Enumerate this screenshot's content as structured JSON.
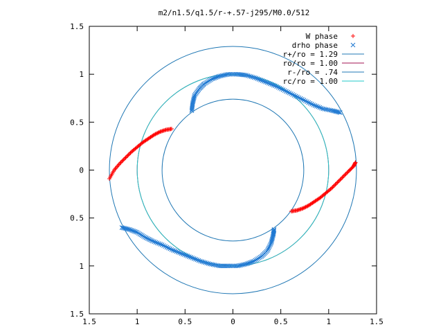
{
  "chart_data": {
    "type": "scatter",
    "title": "m2/n1.5/q1.5/r-+.57-j295/M0.0/512",
    "xlabel": "",
    "ylabel": "",
    "xlim": [
      -1.5,
      1.5
    ],
    "ylim": [
      -1.5,
      1.5
    ],
    "x_tick_values": [
      -1.5,
      -1,
      -0.5,
      0,
      0.5,
      1,
      1.5
    ],
    "x_tick_labels": [
      "1.5",
      "1",
      "0.5",
      "0",
      "0.5",
      "1",
      "1.5"
    ],
    "y_tick_values": [
      1.5,
      1,
      0.5,
      0,
      -0.5,
      -1,
      -1.5
    ],
    "y_tick_labels": [
      "1.5",
      "1",
      "0.5",
      "0",
      "0.5",
      "1",
      "1.5"
    ],
    "grid": false,
    "legend_position": "top-right",
    "aspect": "equal",
    "series": [
      {
        "name": "W phase",
        "marker": "plus",
        "color": "#ff0000",
        "segments": [
          [
            [
              -1.29,
              -0.09
            ],
            [
              -1.24,
              0.0
            ],
            [
              -1.18,
              0.07
            ],
            [
              -1.12,
              0.13
            ],
            [
              -1.06,
              0.19
            ],
            [
              -1.0,
              0.24
            ],
            [
              -0.94,
              0.29
            ],
            [
              -0.88,
              0.33
            ],
            [
              -0.82,
              0.37
            ],
            [
              -0.76,
              0.4
            ],
            [
              -0.7,
              0.42
            ],
            [
              -0.64,
              0.43
            ]
          ],
          [
            [
              0.61,
              -0.43
            ],
            [
              0.67,
              -0.42
            ],
            [
              0.73,
              -0.4
            ],
            [
              0.79,
              -0.37
            ],
            [
              0.85,
              -0.33
            ],
            [
              0.91,
              -0.29
            ],
            [
              0.97,
              -0.24
            ],
            [
              1.03,
              -0.19
            ],
            [
              1.09,
              -0.13
            ],
            [
              1.15,
              -0.07
            ],
            [
              1.21,
              -0.01
            ],
            [
              1.26,
              0.04
            ],
            [
              1.28,
              0.08
            ]
          ]
        ]
      },
      {
        "name": "drho phase",
        "marker": "cross",
        "color": "#1e78d2",
        "segments": [
          [
            [
              -0.43,
              0.62
            ],
            [
              -0.42,
              0.7
            ],
            [
              -0.4,
              0.78
            ],
            [
              -0.35,
              0.85
            ],
            [
              -0.3,
              0.9
            ],
            [
              -0.22,
              0.95
            ],
            [
              -0.14,
              0.98
            ],
            [
              -0.05,
              1.0
            ],
            [
              0.05,
              1.0
            ],
            [
              0.14,
              0.99
            ],
            [
              0.24,
              0.96
            ],
            [
              0.34,
              0.92
            ],
            [
              0.44,
              0.88
            ],
            [
              0.54,
              0.83
            ],
            [
              0.64,
              0.78
            ],
            [
              0.74,
              0.73
            ],
            [
              0.84,
              0.68
            ],
            [
              0.94,
              0.64
            ],
            [
              1.04,
              0.62
            ],
            [
              1.12,
              0.6
            ]
          ],
          [
            [
              -1.16,
              -0.6
            ],
            [
              -1.08,
              -0.62
            ],
            [
              -1.0,
              -0.65
            ],
            [
              -0.92,
              -0.7
            ],
            [
              -0.84,
              -0.74
            ],
            [
              -0.74,
              -0.78
            ],
            [
              -0.64,
              -0.83
            ],
            [
              -0.54,
              -0.87
            ],
            [
              -0.44,
              -0.91
            ],
            [
              -0.34,
              -0.95
            ],
            [
              -0.24,
              -0.98
            ],
            [
              -0.14,
              -1.0
            ],
            [
              -0.05,
              -1.0
            ],
            [
              0.05,
              -1.0
            ],
            [
              0.14,
              -0.98
            ],
            [
              0.22,
              -0.95
            ],
            [
              0.3,
              -0.9
            ],
            [
              0.36,
              -0.84
            ],
            [
              0.4,
              -0.76
            ],
            [
              0.42,
              -0.68
            ],
            [
              0.43,
              -0.62
            ]
          ]
        ]
      }
    ],
    "circles": [
      {
        "name": "r+/ro = 1.29",
        "radius": 1.29,
        "color": "#1f77b4"
      },
      {
        "name": "ro/ro = 1.00",
        "radius": 1.0,
        "color": "#a01050"
      },
      {
        "name": "r-/ro = .74",
        "radius": 0.74,
        "color": "#1f77b4"
      },
      {
        "name": "rc/ro = 1.00",
        "radius": 1.0,
        "color": "#20c8c8"
      }
    ]
  }
}
